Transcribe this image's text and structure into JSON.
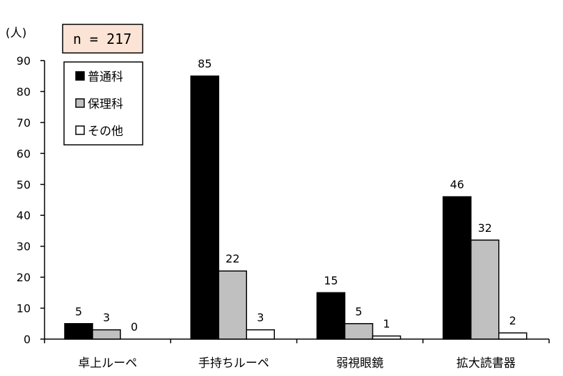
{
  "chart_data": {
    "type": "bar",
    "unit_label": "(人)",
    "sample_size_label": "n = 217",
    "categories": [
      "卓上ルーペ",
      "手持ちルーペ",
      "弱視眼鏡",
      "拡大読書器"
    ],
    "series": [
      {
        "name": "普通科",
        "values": [
          5,
          85,
          15,
          46
        ],
        "color": "#000000"
      },
      {
        "name": "保理科",
        "values": [
          3,
          22,
          5,
          32
        ],
        "color": "#c0c0c0"
      },
      {
        "name": "その他",
        "values": [
          0,
          3,
          1,
          2
        ],
        "color": "#ffffff"
      }
    ],
    "ylim": [
      0,
      90
    ],
    "yticks": [
      "0",
      "10",
      "20",
      "30",
      "40",
      "50",
      "60",
      "70",
      "80",
      "90"
    ],
    "legend_position": "top-left",
    "grid": false,
    "sample_box_color": "#fbe4d5"
  }
}
